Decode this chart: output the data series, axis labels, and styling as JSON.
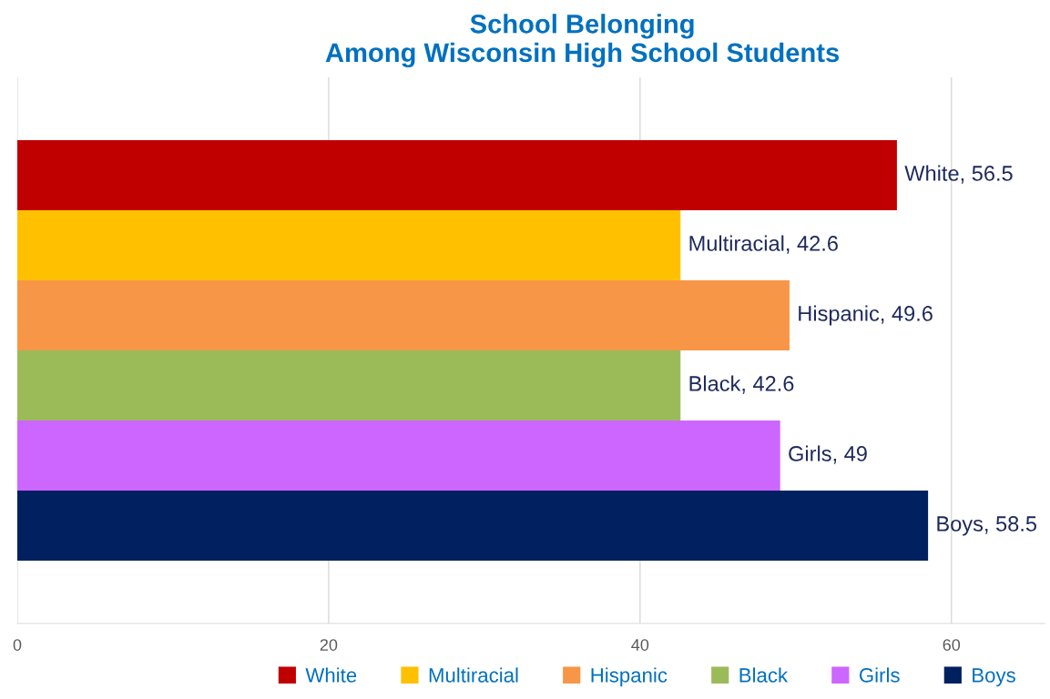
{
  "chart_data": {
    "type": "bar",
    "orientation": "horizontal",
    "title": "School Belonging\nAmong Wisconsin High School Students",
    "categories": [
      null
    ],
    "series": [
      {
        "name": "White",
        "color": "#c00000",
        "values": [
          56.5
        ],
        "value_labels": [
          "White, 56.5"
        ]
      },
      {
        "name": "Multiracial",
        "color": "#ffc000",
        "values": [
          42.6
        ],
        "value_labels": [
          "Multiracial, 42.6"
        ]
      },
      {
        "name": "Hispanic",
        "color": "#f79646",
        "values": [
          49.6
        ],
        "value_labels": [
          "Hispanic, 49.6"
        ]
      },
      {
        "name": "Black",
        "color": "#9bbb59",
        "values": [
          42.6
        ],
        "value_labels": [
          "Black, 42.6"
        ]
      },
      {
        "name": "Girls",
        "color": "#cc66ff",
        "values": [
          49
        ],
        "value_labels": [
          "Girls, 49"
        ]
      },
      {
        "name": "Boys",
        "color": "#002060",
        "values": [
          58.5
        ],
        "value_labels": [
          "Boys, 58.5"
        ]
      }
    ],
    "xlim": [
      0,
      66
    ],
    "xticks": [
      0,
      20,
      40,
      60
    ],
    "grid": "x",
    "legend": "bottom right"
  }
}
